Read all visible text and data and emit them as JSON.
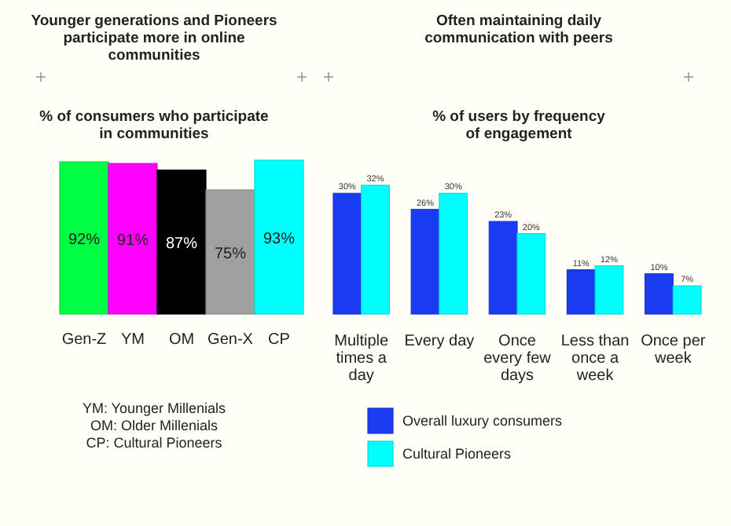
{
  "chart_data": [
    {
      "type": "bar",
      "title": "Younger generations and Pioneers participate more in online communities",
      "subtitle": "% of consumers who participate in communities",
      "categories": [
        "Gen-Z",
        "YM",
        "OM",
        "Gen-X",
        "CP"
      ],
      "values": [
        92,
        91,
        87,
        75,
        93
      ],
      "colors": [
        "#00ff44",
        "#ff00ff",
        "#000000",
        "#a0a0a0",
        "#00ffff"
      ],
      "tick_labels": false,
      "data_labels": true,
      "value_labels": [
        "92%",
        "91%",
        "87%",
        "75%",
        "93%"
      ],
      "annotations": [
        "YM: Younger Millenials",
        "OM: Older Millenials",
        "CP: Cultural Pioneers"
      ],
      "legend": false
    },
    {
      "type": "bar",
      "title": "Often maintaining daily communication with peers",
      "subtitle": "% of users by frequency of engagement",
      "categories": [
        "Multiple times a day",
        "Every day",
        "Once every few days",
        "Less than once a week",
        "Once per week"
      ],
      "series": [
        {
          "name": "Overall luxury consumers",
          "color": "#1a3cf0",
          "values": [
            30,
            26,
            23,
            11,
            10
          ],
          "value_labels": [
            "30%",
            "26%",
            "23%",
            "11%",
            "10%"
          ]
        },
        {
          "name": "Cultural Pioneers",
          "color": "#00ffff",
          "values": [
            32,
            30,
            20,
            12,
            7
          ],
          "value_labels": [
            "32%",
            "30%",
            "20%",
            "12%",
            "7%"
          ]
        }
      ],
      "tick_labels": false,
      "data_labels": true,
      "legend": "bottom"
    }
  ]
}
